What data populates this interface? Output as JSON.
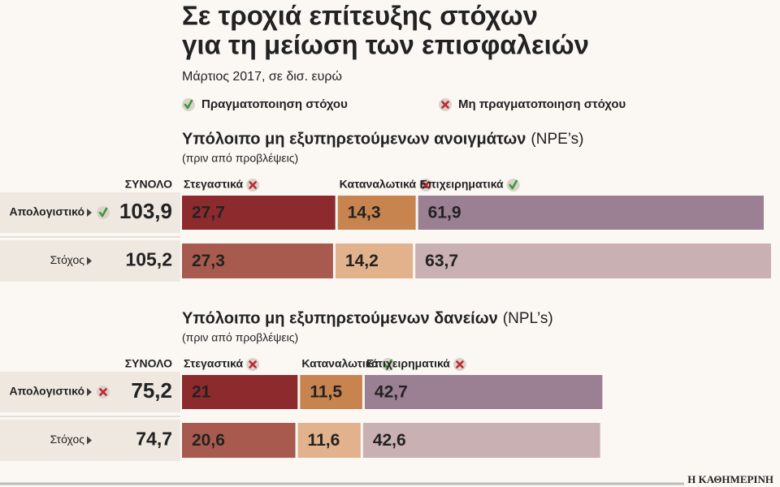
{
  "header": {
    "title": [
      "Σε τροχιά επίτευξης στόχων",
      "για τη μείωση των επισφαλειών"
    ],
    "subtitle": "Μάρτιος 2017, σε δισ. ευρώ",
    "legend": [
      {
        "status": "met",
        "label": "Πραγματοποιηση στόχου"
      },
      {
        "status": "missed",
        "label": "Μη πραγματοποιηση στόχου"
      }
    ]
  },
  "chart_data": [
    {
      "type": "bar",
      "orientation": "horizontal",
      "stacked": true,
      "title": "Υπόλοιπο μη εξυπηρετούμενων ανοιγμάτων",
      "title_note": "(NPE’s)",
      "subtitle": "(πριν από προβλέψεις)",
      "total_heading": "ΣΥΝΟΛΟ",
      "categories": [
        "Απολογιστικό",
        "Στόχος"
      ],
      "category_status": [
        "met",
        null
      ],
      "totals": [
        103.9,
        105.2
      ],
      "total_labels": [
        "103,9",
        "105,2"
      ],
      "series": [
        {
          "name": "Στεγαστικά",
          "status": "missed",
          "color": "#a3282c",
          "colors": [
            "#8d2a2e",
            "#a95a4e"
          ],
          "values": [
            27.7,
            27.3
          ],
          "value_labels": [
            "27,7",
            "27,3"
          ]
        },
        {
          "name": "Καταναλωτικά",
          "status": "missed",
          "color": "#c8792e",
          "colors": [
            "#c8844e",
            "#e2b28c"
          ],
          "values": [
            14.3,
            14.2
          ],
          "value_labels": [
            "14,3",
            "14,2"
          ]
        },
        {
          "name": "Επιχειρηματικά",
          "status": "met",
          "color": "#9a7e93",
          "colors": [
            "#9b7f93",
            "#c9b0b3"
          ],
          "values": [
            61.9,
            63.7
          ],
          "value_labels": [
            "61,9",
            "63,7"
          ]
        }
      ]
    },
    {
      "type": "bar",
      "orientation": "horizontal",
      "stacked": true,
      "title": "Υπόλοιπο μη εξυπηρετούμενων δανείων",
      "title_note": "(NPL’s)",
      "subtitle": "(πριν από προβλέψεις)",
      "total_heading": "ΣΥΝΟΛΟ",
      "categories": [
        "Απολογιστικό",
        "Στόχος"
      ],
      "category_status": [
        "missed",
        null
      ],
      "totals": [
        75.2,
        74.7
      ],
      "total_labels": [
        "75,2",
        "74,7"
      ],
      "series": [
        {
          "name": "Στεγαστικά",
          "status": "missed",
          "color": "#a3282c",
          "colors": [
            "#8d2a2e",
            "#a95a4e"
          ],
          "values": [
            21,
            20.6
          ],
          "value_labels": [
            "21",
            "20,6"
          ]
        },
        {
          "name": "Καταναλωτικά",
          "status": "met",
          "color": "#c8792e",
          "colors": [
            "#c8844e",
            "#e2b28c"
          ],
          "values": [
            11.5,
            11.6
          ],
          "value_labels": [
            "11,5",
            "11,6"
          ]
        },
        {
          "name": "Επιχειρηματικά",
          "status": "missed",
          "color": "#9a7e93",
          "colors": [
            "#9b7f93",
            "#c9b0b3"
          ],
          "values": [
            42.7,
            42.6
          ],
          "value_labels": [
            "42,7",
            "42,6"
          ]
        }
      ]
    }
  ],
  "footer": "Η ΚΑΘΗΜΕΡΙΝΗ"
}
